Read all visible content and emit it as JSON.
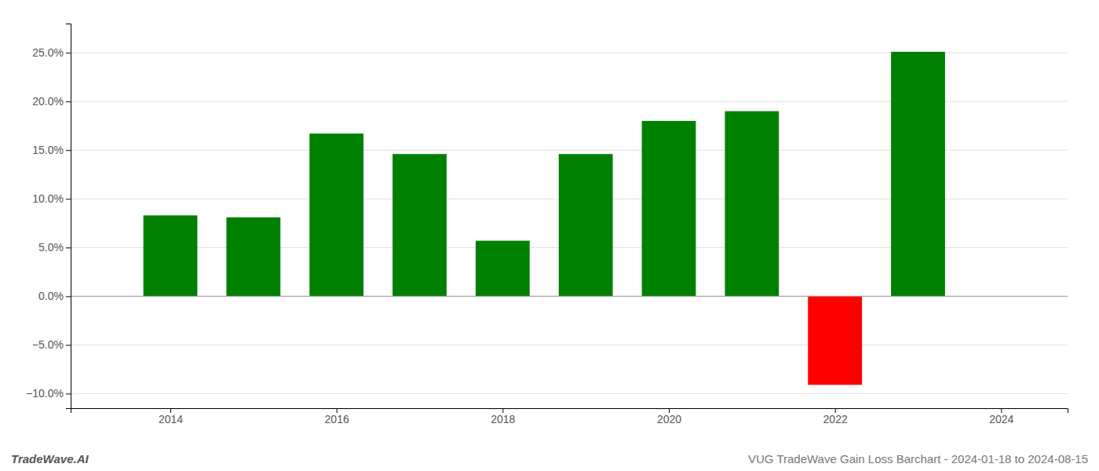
{
  "chart_data": {
    "type": "bar",
    "x": [
      2014,
      2015,
      2016,
      2017,
      2018,
      2019,
      2020,
      2021,
      2022,
      2023
    ],
    "values": [
      0.083,
      0.081,
      0.167,
      0.146,
      0.057,
      0.146,
      0.18,
      0.19,
      -0.091,
      0.251
    ],
    "colors": [
      "#008000",
      "#008000",
      "#008000",
      "#008000",
      "#008000",
      "#008000",
      "#008000",
      "#008000",
      "#ff0000",
      "#008000"
    ],
    "xlim": [
      2012.8,
      2024.8
    ],
    "xticks": [
      2014,
      2016,
      2018,
      2020,
      2022,
      2024
    ],
    "ylim": [
      -0.115,
      0.28
    ],
    "yticks": [
      {
        "value": -0.1,
        "label": "−10.0%"
      },
      {
        "value": -0.05,
        "label": "−5.0%"
      },
      {
        "value": 0.0,
        "label": "0.0%"
      },
      {
        "value": 0.05,
        "label": "5.0%"
      },
      {
        "value": 0.1,
        "label": "10.0%"
      },
      {
        "value": 0.15,
        "label": "15.0%"
      },
      {
        "value": 0.2,
        "label": "20.0%"
      },
      {
        "value": 0.25,
        "label": "25.0%"
      }
    ],
    "grid": true,
    "annotations": [
      "TradeWave.AI",
      "VUG TradeWave Gain Loss Barchart - 2024-01-18 to 2024-08-15"
    ]
  }
}
